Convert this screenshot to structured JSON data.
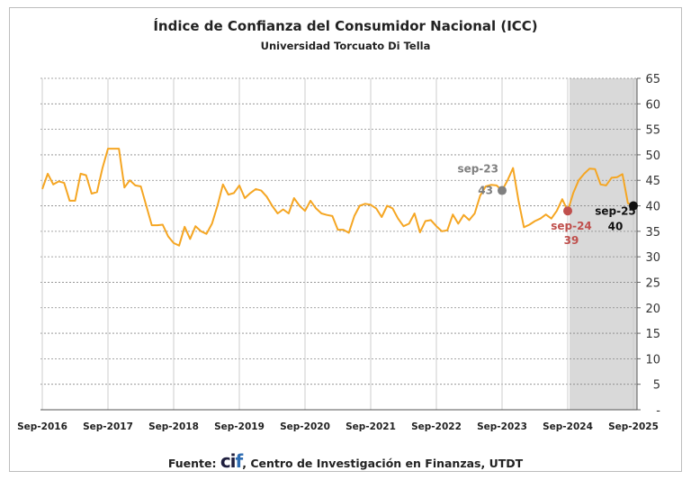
{
  "chart_data": {
    "type": "line",
    "title": "Índice de Confianza del Consumidor Nacional (ICC)",
    "subtitle": "Universidad Torcuato Di Tella",
    "xlabel": "",
    "ylabel": "",
    "ylim": [
      0,
      65
    ],
    "y_ticks": [
      0,
      5,
      10,
      15,
      20,
      25,
      30,
      35,
      40,
      45,
      50,
      55,
      60,
      65
    ],
    "y_zero_label": "-",
    "x_tick_labels": [
      "Sep-2016",
      "Sep-2017",
      "Sep-2018",
      "Sep-2019",
      "Sep-2020",
      "Sep-2021",
      "Sep-2022",
      "Sep-2023",
      "Sep-2024",
      "Sep-2025"
    ],
    "x_start": "Sep-2016",
    "frequency": "monthly",
    "grid": true,
    "line_color": "#f5a623",
    "shaded_period": {
      "from": "Sep-2024",
      "to": "Sep-2025",
      "color": "#d9d9d9"
    },
    "series": [
      {
        "name": "ICC",
        "values": [
          43.3,
          46.3,
          44.2,
          44.8,
          44.5,
          41,
          41,
          46.3,
          46,
          42.4,
          42.7,
          47.4,
          51.2,
          51.2,
          51.2,
          43.6,
          45,
          44,
          43.8,
          40,
          36.2,
          36.2,
          36.3,
          34,
          32.7,
          32.2,
          35.9,
          33.5,
          36,
          35,
          34.5,
          36.5,
          40,
          44.2,
          42.2,
          42.5,
          44,
          41.5,
          42.5,
          43.3,
          43,
          41.8,
          40,
          38.5,
          39.3,
          38.5,
          41.5,
          40,
          39,
          41,
          39.5,
          38.5,
          38.2,
          38,
          35.3,
          35.3,
          34.7,
          38,
          40,
          40.4,
          40.2,
          39.5,
          37.8,
          40,
          39.5,
          37.5,
          36,
          36.5,
          38.5,
          34.8,
          37,
          37.2,
          36,
          35,
          35.2,
          38.3,
          36.5,
          38.2,
          37.2,
          38.5,
          42,
          43.8,
          44.1,
          44,
          43,
          45,
          47.4,
          41,
          35.8,
          36.3,
          37,
          37.5,
          38.3,
          37.5,
          39,
          41.3,
          39,
          42.5,
          45,
          46.3,
          47.3,
          47.2,
          44.2,
          44,
          45.5,
          45.6,
          46.2,
          40.5,
          40
        ]
      }
    ],
    "annotations": [
      {
        "label": "sep-23",
        "value": "43",
        "index": 84,
        "color": "#808080"
      },
      {
        "label": "sep-24",
        "value": "39",
        "index": 96,
        "color": "#c0504d"
      },
      {
        "label": "sep-25",
        "value": "40",
        "index": 108,
        "color": "#111111"
      }
    ]
  },
  "footer": {
    "prefix": "Fuente:",
    "logo_c": "ci",
    "logo_f": "f",
    "text": ", Centro de Investigación en Finanzas, UTDT"
  }
}
